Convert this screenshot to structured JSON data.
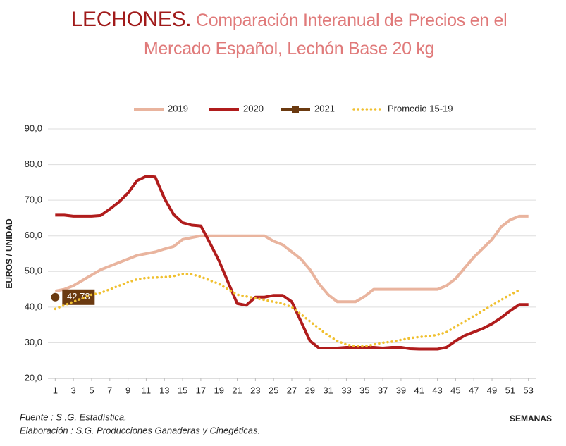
{
  "chart_data": {
    "type": "line",
    "title": "LECHONES.",
    "subtitle": "Comparación Interanual de Precios en el Mercado Español, Lechón Base 20 kg",
    "y_label": "EUROS / UNIDAD",
    "x_label": "SEMANAS",
    "source": "Fuente :  S .G. Estadística.",
    "credit": "Elaboración : S.G. Producciones Ganaderas y Cinegéticas.",
    "x": [
      1,
      2,
      3,
      4,
      5,
      6,
      7,
      8,
      9,
      10,
      11,
      12,
      13,
      14,
      15,
      16,
      17,
      18,
      19,
      20,
      21,
      22,
      23,
      24,
      25,
      26,
      27,
      28,
      29,
      30,
      31,
      32,
      33,
      34,
      35,
      36,
      37,
      38,
      39,
      40,
      41,
      42,
      43,
      44,
      45,
      46,
      47,
      48,
      49,
      50,
      51,
      52,
      53
    ],
    "xlim": [
      0.2,
      53.8
    ],
    "xticks": [
      1,
      3,
      5,
      7,
      9,
      11,
      13,
      15,
      17,
      19,
      21,
      23,
      25,
      27,
      29,
      31,
      33,
      35,
      37,
      39,
      41,
      43,
      45,
      47,
      49,
      51,
      53
    ],
    "ylim": [
      20,
      90
    ],
    "yticks": [
      {
        "value": 20,
        "label": "20,0"
      },
      {
        "value": 30,
        "label": "30,0"
      },
      {
        "value": 40,
        "label": "40,0"
      },
      {
        "value": 50,
        "label": "50,0"
      },
      {
        "value": 60,
        "label": "60,0"
      },
      {
        "value": 70,
        "label": "70,0"
      },
      {
        "value": 80,
        "label": "80,0"
      },
      {
        "value": 90,
        "label": "90,0"
      }
    ],
    "grid": true,
    "legend": "top",
    "series": [
      {
        "name": "2019",
        "color": "#e9b49e",
        "style": "solid",
        "values": [
          44.5,
          45,
          46,
          47.5,
          49,
          50.5,
          51.5,
          52.5,
          53.5,
          54.5,
          55,
          55.5,
          56.3,
          57,
          59,
          59.5,
          60,
          60,
          60,
          60,
          60,
          60,
          60,
          60,
          58.5,
          57.5,
          55.5,
          53.5,
          50.5,
          46.5,
          43.5,
          41.5,
          41.5,
          41.5,
          43,
          45,
          45,
          45,
          45,
          45,
          45,
          45,
          45,
          46,
          48,
          51,
          54,
          56.5,
          59,
          62.5,
          64.5,
          65.5,
          65.5
        ]
      },
      {
        "name": "2020",
        "color": "#b01c1c",
        "style": "solid",
        "values": [
          65.8,
          65.8,
          65.5,
          65.5,
          65.5,
          65.7,
          67.5,
          69.5,
          72,
          75.5,
          76.7,
          76.5,
          70.5,
          66,
          63.7,
          63,
          62.8,
          58,
          53,
          47,
          41,
          40.5,
          42.8,
          42.8,
          43.3,
          43.3,
          41.5,
          36,
          30.5,
          28.5,
          28.5,
          28.5,
          28.7,
          28.7,
          28.7,
          28.7,
          28.5,
          28.7,
          28.7,
          28.3,
          28.2,
          28.2,
          28.2,
          28.7,
          30.5,
          32,
          33,
          34,
          35.3,
          37,
          39,
          40.7,
          40.7
        ]
      },
      {
        "name": "2021",
        "color": "#6b3a10",
        "style": "marker",
        "values": [
          42.78,
          null,
          null,
          null,
          null,
          null,
          null,
          null,
          null,
          null,
          null,
          null,
          null,
          null,
          null,
          null,
          null,
          null,
          null,
          null,
          null,
          null,
          null,
          null,
          null,
          null,
          null,
          null,
          null,
          null,
          null,
          null,
          null,
          null,
          null,
          null,
          null,
          null,
          null,
          null,
          null,
          null,
          null,
          null,
          null,
          null,
          null,
          null,
          null,
          null,
          null,
          null,
          null
        ],
        "value_labels": [
          "42,78",
          null,
          null,
          null,
          null,
          null,
          null,
          null,
          null,
          null,
          null,
          null,
          null,
          null,
          null,
          null,
          null,
          null,
          null,
          null,
          null,
          null,
          null,
          null,
          null,
          null,
          null,
          null,
          null,
          null,
          null,
          null,
          null,
          null,
          null,
          null,
          null,
          null,
          null,
          null,
          null,
          null,
          null,
          null,
          null,
          null,
          null,
          null,
          null,
          null,
          null,
          null,
          null
        ]
      },
      {
        "name": "Promedio 15-19",
        "color": "#f0c030",
        "style": "dotted",
        "values": [
          39.5,
          40.5,
          41.5,
          42.5,
          43.5,
          44,
          45,
          46,
          47,
          47.8,
          48.2,
          48.3,
          48.4,
          48.7,
          49.3,
          49.2,
          48.5,
          47.5,
          46.5,
          45,
          43.5,
          43,
          42.5,
          42,
          41.5,
          41,
          40,
          38,
          36,
          34,
          32,
          30.5,
          29.5,
          29,
          29,
          29.5,
          30,
          30.3,
          30.8,
          31.3,
          31.6,
          31.8,
          32.2,
          33,
          34.5,
          36,
          37.5,
          39,
          40.5,
          42,
          43.5,
          44.8,
          null
        ]
      }
    ]
  }
}
